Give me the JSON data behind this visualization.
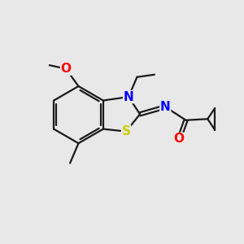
{
  "background_color": "#e8e8e8",
  "bond_color": "#1a1a1a",
  "atom_colors": {
    "N": "#0000ff",
    "O": "#ff0000",
    "S": "#cccc00",
    "C": "#1a1a1a"
  },
  "bond_width": 1.6,
  "font_size_atom": 11
}
